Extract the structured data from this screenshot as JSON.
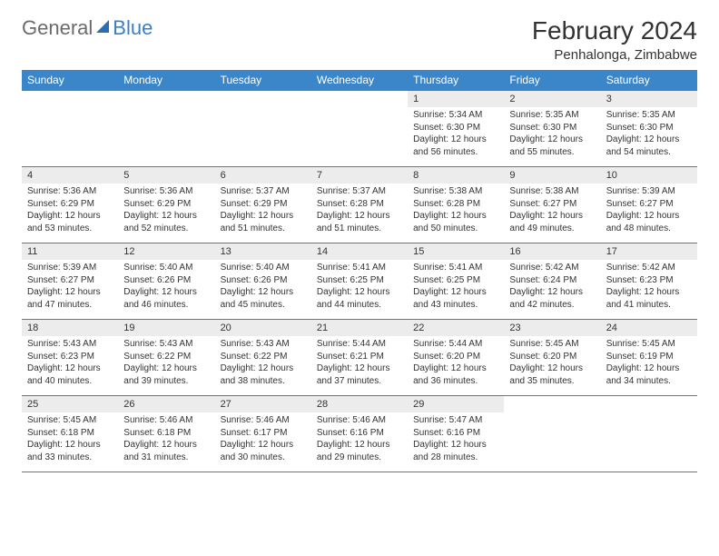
{
  "logo": {
    "part1": "General",
    "part2": "Blue"
  },
  "title": "February 2024",
  "subtitle": "Penhalonga, Zimbabwe",
  "colors": {
    "header_bg": "#3b86c8",
    "header_text": "#ffffff",
    "row_border": "#3b7fc4",
    "daynum_bg": "#ececec",
    "body_text": "#333333",
    "logo_gray": "#6b6b6b",
    "logo_blue": "#3b7fc4"
  },
  "days_of_week": [
    "Sunday",
    "Monday",
    "Tuesday",
    "Wednesday",
    "Thursday",
    "Friday",
    "Saturday"
  ],
  "leading_blanks": 4,
  "days": [
    {
      "n": "1",
      "sunrise": "5:34 AM",
      "sunset": "6:30 PM",
      "daylight": "12 hours and 56 minutes."
    },
    {
      "n": "2",
      "sunrise": "5:35 AM",
      "sunset": "6:30 PM",
      "daylight": "12 hours and 55 minutes."
    },
    {
      "n": "3",
      "sunrise": "5:35 AM",
      "sunset": "6:30 PM",
      "daylight": "12 hours and 54 minutes."
    },
    {
      "n": "4",
      "sunrise": "5:36 AM",
      "sunset": "6:29 PM",
      "daylight": "12 hours and 53 minutes."
    },
    {
      "n": "5",
      "sunrise": "5:36 AM",
      "sunset": "6:29 PM",
      "daylight": "12 hours and 52 minutes."
    },
    {
      "n": "6",
      "sunrise": "5:37 AM",
      "sunset": "6:29 PM",
      "daylight": "12 hours and 51 minutes."
    },
    {
      "n": "7",
      "sunrise": "5:37 AM",
      "sunset": "6:28 PM",
      "daylight": "12 hours and 51 minutes."
    },
    {
      "n": "8",
      "sunrise": "5:38 AM",
      "sunset": "6:28 PM",
      "daylight": "12 hours and 50 minutes."
    },
    {
      "n": "9",
      "sunrise": "5:38 AM",
      "sunset": "6:27 PM",
      "daylight": "12 hours and 49 minutes."
    },
    {
      "n": "10",
      "sunrise": "5:39 AM",
      "sunset": "6:27 PM",
      "daylight": "12 hours and 48 minutes."
    },
    {
      "n": "11",
      "sunrise": "5:39 AM",
      "sunset": "6:27 PM",
      "daylight": "12 hours and 47 minutes."
    },
    {
      "n": "12",
      "sunrise": "5:40 AM",
      "sunset": "6:26 PM",
      "daylight": "12 hours and 46 minutes."
    },
    {
      "n": "13",
      "sunrise": "5:40 AM",
      "sunset": "6:26 PM",
      "daylight": "12 hours and 45 minutes."
    },
    {
      "n": "14",
      "sunrise": "5:41 AM",
      "sunset": "6:25 PM",
      "daylight": "12 hours and 44 minutes."
    },
    {
      "n": "15",
      "sunrise": "5:41 AM",
      "sunset": "6:25 PM",
      "daylight": "12 hours and 43 minutes."
    },
    {
      "n": "16",
      "sunrise": "5:42 AM",
      "sunset": "6:24 PM",
      "daylight": "12 hours and 42 minutes."
    },
    {
      "n": "17",
      "sunrise": "5:42 AM",
      "sunset": "6:23 PM",
      "daylight": "12 hours and 41 minutes."
    },
    {
      "n": "18",
      "sunrise": "5:43 AM",
      "sunset": "6:23 PM",
      "daylight": "12 hours and 40 minutes."
    },
    {
      "n": "19",
      "sunrise": "5:43 AM",
      "sunset": "6:22 PM",
      "daylight": "12 hours and 39 minutes."
    },
    {
      "n": "20",
      "sunrise": "5:43 AM",
      "sunset": "6:22 PM",
      "daylight": "12 hours and 38 minutes."
    },
    {
      "n": "21",
      "sunrise": "5:44 AM",
      "sunset": "6:21 PM",
      "daylight": "12 hours and 37 minutes."
    },
    {
      "n": "22",
      "sunrise": "5:44 AM",
      "sunset": "6:20 PM",
      "daylight": "12 hours and 36 minutes."
    },
    {
      "n": "23",
      "sunrise": "5:45 AM",
      "sunset": "6:20 PM",
      "daylight": "12 hours and 35 minutes."
    },
    {
      "n": "24",
      "sunrise": "5:45 AM",
      "sunset": "6:19 PM",
      "daylight": "12 hours and 34 minutes."
    },
    {
      "n": "25",
      "sunrise": "5:45 AM",
      "sunset": "6:18 PM",
      "daylight": "12 hours and 33 minutes."
    },
    {
      "n": "26",
      "sunrise": "5:46 AM",
      "sunset": "6:18 PM",
      "daylight": "12 hours and 31 minutes."
    },
    {
      "n": "27",
      "sunrise": "5:46 AM",
      "sunset": "6:17 PM",
      "daylight": "12 hours and 30 minutes."
    },
    {
      "n": "28",
      "sunrise": "5:46 AM",
      "sunset": "6:16 PM",
      "daylight": "12 hours and 29 minutes."
    },
    {
      "n": "29",
      "sunrise": "5:47 AM",
      "sunset": "6:16 PM",
      "daylight": "12 hours and 28 minutes."
    }
  ],
  "labels": {
    "sunrise": "Sunrise:",
    "sunset": "Sunset:",
    "daylight": "Daylight:"
  }
}
